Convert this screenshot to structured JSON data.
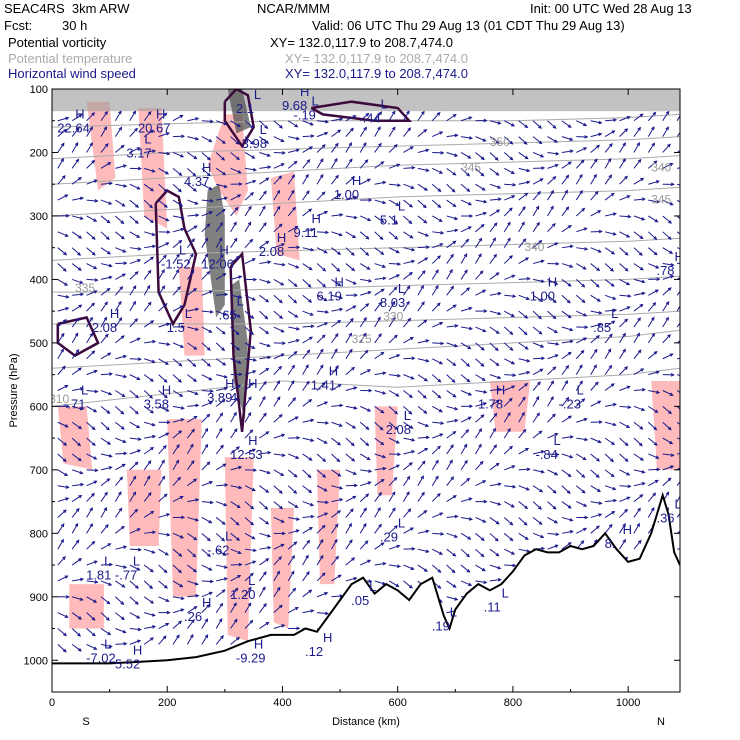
{
  "header": {
    "model": "SEAC4RS  3km ARW",
    "fcst_label": "Fcst:",
    "fcst_value": "30 h",
    "org": "NCAR/MMM",
    "init": "Init: 00 UTC Wed 28 Aug 13",
    "valid": "Valid: 06 UTC Thu 29 Aug 13 (01 CDT Thu 29 Aug 13)"
  },
  "legend": [
    {
      "field": "Potential vorticity",
      "xy": "XY= 132.0,117.9 to 208.7,474.0",
      "color": "#000000"
    },
    {
      "field": "Potential temperature",
      "xy": "XY= 132.0,117.9 to 208.7,474.0",
      "color": "#aaaaaa"
    },
    {
      "field": "Horizontal wind speed",
      "xy": "XY= 132.0,117.9 to 208.7,474.0",
      "color": "#1a1a8c"
    }
  ],
  "chart_data": {
    "type": "area",
    "title": "",
    "xlabel": "Distance (km)",
    "ylabel": "Pressure (hPa)",
    "xlim": [
      0,
      1090
    ],
    "ylim": [
      1050,
      100
    ],
    "x_ticks": [
      0,
      200,
      400,
      600,
      800,
      1000
    ],
    "y_ticks": [
      100,
      200,
      300,
      400,
      500,
      600,
      700,
      800,
      900,
      1000
    ],
    "x_end_labels": {
      "left": "S",
      "right": "N"
    },
    "colors": {
      "pv_fill": "#ffbbbb",
      "pv_contour": "#3d0a3d",
      "theta": "#aaaaaa",
      "wind": "#1a1a8c",
      "terrain": "#000000"
    },
    "terrain": {
      "x": [
        0,
        100,
        200,
        250,
        300,
        340,
        380,
        420,
        440,
        460,
        480,
        500,
        520,
        540,
        560,
        580,
        600,
        620,
        640,
        660,
        680,
        690,
        700,
        720,
        740,
        760,
        780,
        800,
        820,
        840,
        860,
        880,
        900,
        920,
        940,
        960,
        980,
        1000,
        1020,
        1040,
        1060,
        1070,
        1080,
        1090
      ],
      "p": [
        1005,
        1005,
        1000,
        995,
        985,
        970,
        960,
        960,
        950,
        955,
        930,
        905,
        880,
        870,
        895,
        880,
        890,
        905,
        880,
        870,
        930,
        950,
        920,
        895,
        880,
        890,
        880,
        860,
        835,
        825,
        830,
        830,
        820,
        825,
        820,
        800,
        825,
        845,
        840,
        800,
        740,
        770,
        830,
        850
      ]
    },
    "theta_contours": [
      {
        "label": "310",
        "x": [
          0,
          200,
          400,
          600,
          800,
          1000,
          1090
        ],
        "p": [
          600,
          580,
          560,
          570,
          560,
          550,
          540
        ]
      },
      {
        "label": "325",
        "x": [
          0,
          200,
          400,
          600,
          800,
          1000,
          1090
        ],
        "p": [
          540,
          530,
          520,
          510,
          500,
          490,
          480
        ]
      },
      {
        "label": "330",
        "x": [
          0,
          200,
          400,
          600,
          800,
          1000,
          1090
        ],
        "p": [
          470,
          470,
          470,
          465,
          460,
          455,
          450
        ]
      },
      {
        "label": "335",
        "x": [
          0,
          200,
          400,
          600,
          800,
          1000,
          1090
        ],
        "p": [
          420,
          420,
          415,
          410,
          405,
          400,
          395
        ]
      },
      {
        "label": "340",
        "x": [
          0,
          200,
          400,
          600,
          800,
          1000,
          1090
        ],
        "p": [
          370,
          360,
          355,
          350,
          345,
          340,
          335
        ]
      },
      {
        "label": "345",
        "x": [
          0,
          200,
          400,
          600,
          800,
          1000,
          1090
        ],
        "p": [
          300,
          290,
          280,
          270,
          265,
          260,
          255
        ]
      },
      {
        "label": "350",
        "x": [
          0,
          200,
          400,
          600,
          800,
          1000,
          1090
        ],
        "p": [
          250,
          240,
          230,
          220,
          215,
          210,
          205
        ]
      },
      {
        "label": "",
        "x": [
          0,
          200,
          400,
          600,
          800,
          1000,
          1090
        ],
        "p": [
          210,
          200,
          195,
          190,
          185,
          180,
          175
        ]
      },
      {
        "label": "",
        "x": [
          0,
          200,
          400,
          600,
          800,
          1000,
          1090
        ],
        "p": [
          160,
          155,
          150,
          150,
          150,
          145,
          140
        ]
      }
    ],
    "theta_labels": [
      {
        "text": "330",
        "x": 575,
        "p": 465
      },
      {
        "text": "325",
        "x": 520,
        "p": 500
      },
      {
        "text": "310",
        "x": -5,
        "p": 595
      },
      {
        "text": "335",
        "x": 40,
        "p": 420
      },
      {
        "text": "340",
        "x": 820,
        "p": 355
      },
      {
        "text": "345",
        "x": 710,
        "p": 230
      },
      {
        "text": "350",
        "x": 760,
        "p": 190
      },
      {
        "text": "345",
        "x": 1040,
        "p": 280
      },
      {
        "text": "340",
        "x": 1040,
        "p": 230
      }
    ],
    "pv_regions": [
      {
        "x": [
          270,
          300,
          330,
          340,
          320,
          290
        ],
        "p": [
          220,
          140,
          140,
          260,
          300,
          260
        ]
      },
      {
        "x": [
          60,
          100,
          110,
          80
        ],
        "p": [
          120,
          120,
          240,
          260
        ]
      },
      {
        "x": [
          150,
          190,
          200,
          160
        ],
        "p": [
          130,
          130,
          320,
          300
        ]
      },
      {
        "x": [
          380,
          420,
          430,
          390
        ],
        "p": [
          240,
          230,
          370,
          360
        ]
      },
      {
        "x": [
          220,
          260,
          265,
          230
        ],
        "p": [
          380,
          380,
          520,
          520
        ]
      },
      {
        "x": [
          10,
          60,
          70,
          20
        ],
        "p": [
          600,
          600,
          700,
          690
        ]
      },
      {
        "x": [
          200,
          260,
          250,
          210
        ],
        "p": [
          620,
          620,
          900,
          900
        ]
      },
      {
        "x": [
          300,
          350,
          340,
          305
        ],
        "p": [
          680,
          680,
          970,
          960
        ]
      },
      {
        "x": [
          380,
          420,
          410,
          385
        ],
        "p": [
          760,
          760,
          950,
          940
        ]
      },
      {
        "x": [
          460,
          500,
          490,
          465
        ],
        "p": [
          700,
          700,
          880,
          880
        ]
      },
      {
        "x": [
          560,
          600,
          590,
          565
        ],
        "p": [
          600,
          600,
          740,
          740
        ]
      },
      {
        "x": [
          760,
          830,
          820,
          770
        ],
        "p": [
          560,
          560,
          640,
          640
        ]
      },
      {
        "x": [
          1040,
          1090,
          1090,
          1050
        ],
        "p": [
          560,
          560,
          700,
          700
        ]
      },
      {
        "x": [
          30,
          90,
          90,
          30
        ],
        "p": [
          880,
          880,
          950,
          950
        ]
      },
      {
        "x": [
          130,
          190,
          185,
          135
        ],
        "p": [
          700,
          700,
          820,
          820
        ]
      }
    ],
    "pv_contours": [
      {
        "x": [
          300,
          320,
          340,
          350,
          330,
          300
        ],
        "p": [
          120,
          100,
          110,
          160,
          190,
          150
        ]
      },
      {
        "x": [
          180,
          200,
          220,
          230,
          250,
          230,
          210,
          185
        ],
        "p": [
          280,
          260,
          270,
          320,
          360,
          440,
          470,
          420
        ]
      },
      {
        "x": [
          310,
          330,
          345,
          330,
          315
        ],
        "p": [
          380,
          360,
          480,
          640,
          520
        ]
      },
      {
        "x": [
          450,
          520,
          600,
          620,
          560,
          470
        ],
        "p": [
          130,
          120,
          130,
          150,
          150,
          140
        ]
      },
      {
        "x": [
          10,
          60,
          80,
          40,
          10
        ],
        "p": [
          470,
          460,
          500,
          520,
          500
        ]
      }
    ],
    "stratosphere_band": {
      "p_top": 100,
      "p_bottom": 135
    },
    "gray_regions": [
      {
        "x": [
          270,
          290,
          300,
          300,
          285,
          265
        ],
        "p": [
          260,
          250,
          300,
          440,
          460,
          330
        ]
      },
      {
        "x": [
          310,
          325,
          340,
          335,
          315
        ],
        "p": [
          410,
          400,
          500,
          620,
          560
        ]
      },
      {
        "x": [
          305,
          330,
          345,
          320
        ],
        "p": [
          100,
          100,
          160,
          170
        ]
      }
    ],
    "wind_vectors": {
      "x_spacing": 25,
      "p_spacing": 25,
      "color": "#1a1a8c"
    },
    "extrema_labels": [
      {
        "type": "H",
        "x": 30,
        "p": 165,
        "value": "22.64"
      },
      {
        "type": "H",
        "x": 170,
        "p": 165,
        "value": "20.67"
      },
      {
        "type": "L",
        "x": 150,
        "p": 205,
        "value": "3.17"
      },
      {
        "type": "L",
        "x": 340,
        "p": 135,
        "value": "2.1"
      },
      {
        "type": "H",
        "x": 420,
        "p": 130,
        "value": "9.68"
      },
      {
        "type": "L",
        "x": 440,
        "p": 145,
        "value": "-.19"
      },
      {
        "type": "L",
        "x": 560,
        "p": 150,
        "value": ".44"
      },
      {
        "type": "L",
        "x": 350,
        "p": 190,
        "value": "3.98"
      },
      {
        "type": "H",
        "x": 250,
        "p": 250,
        "value": "4.37"
      },
      {
        "type": "H",
        "x": 510,
        "p": 270,
        "value": "1.00"
      },
      {
        "type": "L",
        "x": 590,
        "p": 310,
        "value": "5.1"
      },
      {
        "type": "H",
        "x": 440,
        "p": 330,
        "value": "9.11"
      },
      {
        "type": "H",
        "x": 380,
        "p": 360,
        "value": "2.08"
      },
      {
        "type": "L",
        "x": 210,
        "p": 380,
        "value": "-1.52"
      },
      {
        "type": "H",
        "x": 280,
        "p": 380,
        "value": "12.06"
      },
      {
        "type": "H",
        "x": 480,
        "p": 430,
        "value": "6.19"
      },
      {
        "type": "L",
        "x": 590,
        "p": 440,
        "value": "8.03"
      },
      {
        "type": "H",
        "x": 850,
        "p": 430,
        "value": "1.00"
      },
      {
        "type": "H",
        "x": 1070,
        "p": 390,
        "value": ".78"
      },
      {
        "type": "L",
        "x": 960,
        "p": 480,
        "value": ".85"
      },
      {
        "type": "H",
        "x": 90,
        "p": 480,
        "value": "2.08"
      },
      {
        "type": "L",
        "x": 220,
        "p": 480,
        "value": "1.5"
      },
      {
        "type": "L",
        "x": 310,
        "p": 460,
        "value": ".65"
      },
      {
        "type": "L",
        "x": 40,
        "p": 600,
        "value": "-.71"
      },
      {
        "type": "H",
        "x": 180,
        "p": 600,
        "value": "3.58"
      },
      {
        "type": "H",
        "x": 290,
        "p": 590,
        "value": "3.89"
      },
      {
        "type": "H",
        "x": 330,
        "p": 590,
        "value": "4"
      },
      {
        "type": "H",
        "x": 470,
        "p": 570,
        "value": "1.41"
      },
      {
        "type": "L",
        "x": 600,
        "p": 640,
        "value": "2.08"
      },
      {
        "type": "H",
        "x": 760,
        "p": 600,
        "value": "1.78"
      },
      {
        "type": "L",
        "x": 900,
        "p": 600,
        "value": "-.23"
      },
      {
        "type": "H",
        "x": 330,
        "p": 680,
        "value": "12.53"
      },
      {
        "type": "L",
        "x": 860,
        "p": 680,
        "value": "-.84"
      },
      {
        "type": "L",
        "x": 590,
        "p": 810,
        "value": ".29"
      },
      {
        "type": "L",
        "x": 290,
        "p": 830,
        "value": "-.62"
      },
      {
        "type": "L",
        "x": 80,
        "p": 870,
        "value": "1.81"
      },
      {
        "type": "L",
        "x": 130,
        "p": 870,
        "value": "-.77"
      },
      {
        "type": "H",
        "x": 980,
        "p": 820,
        "value": "8."
      },
      {
        "type": "L",
        "x": 1070,
        "p": 780,
        "value": ".36"
      },
      {
        "type": "L",
        "x": 330,
        "p": 900,
        "value": "1.20"
      },
      {
        "type": "L",
        "x": 540,
        "p": 910,
        "value": ".05"
      },
      {
        "type": "L",
        "x": 770,
        "p": 920,
        "value": ".11"
      },
      {
        "type": "H",
        "x": 250,
        "p": 935,
        "value": ".26"
      },
      {
        "type": "L",
        "x": 680,
        "p": 950,
        "value": ".19"
      },
      {
        "type": "L",
        "x": 80,
        "p": 1000,
        "value": "-7.02"
      },
      {
        "type": "H",
        "x": 130,
        "p": 1010,
        "value": "5.52"
      },
      {
        "type": "H",
        "x": 340,
        "p": 1000,
        "value": "-9.29"
      },
      {
        "type": "H",
        "x": 460,
        "p": 990,
        "value": ".12"
      }
    ]
  }
}
